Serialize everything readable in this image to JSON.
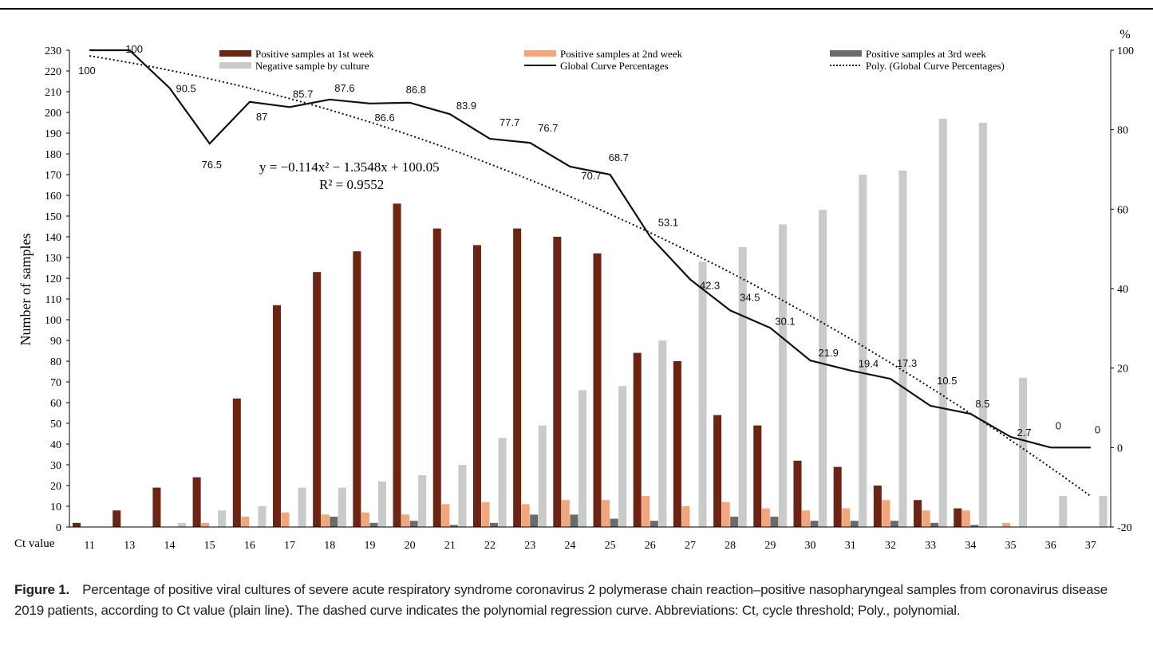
{
  "figure": {
    "label": "Figure 1.",
    "caption": "Percentage of positive viral cultures of severe acute respiratory syndrome coronavirus 2 polymerase chain reaction–positive nasopharyngeal samples from coronavirus disease 2019 patients, according to Ct value (plain line). The dashed curve indicates the polynomial regression curve. Abbreviations: Ct, cycle threshold; Poly., polynomial."
  },
  "colors": {
    "week1": "#6e2413",
    "week2": "#f2a679",
    "week3": "#6b6b6b",
    "negative": "#c9cbca",
    "line": "#111111"
  },
  "chart_data": {
    "type": "bar",
    "xlabel": "Ct value",
    "ylabel": "Number of samples",
    "y2label": "%",
    "ylim": [
      0,
      230
    ],
    "y2lim": [
      -20,
      100
    ],
    "yticks": [
      0,
      10,
      20,
      30,
      40,
      50,
      60,
      70,
      80,
      90,
      100,
      110,
      120,
      130,
      140,
      150,
      160,
      170,
      180,
      190,
      200,
      210,
      220,
      230
    ],
    "y2ticks": [
      -20,
      0,
      20,
      40,
      60,
      80,
      100
    ],
    "categories": [
      "11",
      "13",
      "14",
      "15",
      "16",
      "17",
      "18",
      "19",
      "20",
      "21",
      "22",
      "23",
      "24",
      "25",
      "26",
      "27",
      "28",
      "29",
      "30",
      "31",
      "32",
      "33",
      "34",
      "35",
      "36",
      "37"
    ],
    "series": [
      {
        "name": "Positive samples at 1st week",
        "key": "week1",
        "values": [
          2,
          8,
          19,
          24,
          62,
          107,
          123,
          133,
          156,
          144,
          136,
          144,
          140,
          132,
          84,
          80,
          54,
          49,
          32,
          29,
          20,
          13,
          9,
          0,
          0,
          0
        ]
      },
      {
        "name": "Positive samples at 2nd week",
        "key": "week2",
        "values": [
          0,
          0,
          0,
          2,
          5,
          7,
          6,
          7,
          6,
          11,
          12,
          11,
          13,
          13,
          15,
          10,
          12,
          9,
          8,
          9,
          13,
          8,
          8,
          2,
          0,
          0
        ]
      },
      {
        "name": "Positive samples at 3rd week",
        "key": "week3",
        "values": [
          0,
          0,
          0,
          0,
          0,
          0,
          5,
          2,
          3,
          1,
          2,
          6,
          6,
          4,
          3,
          0,
          5,
          5,
          3,
          3,
          3,
          2,
          1,
          0,
          0,
          0
        ]
      },
      {
        "name": "Negative sample by culture",
        "key": "negative",
        "values": [
          0,
          0,
          2,
          8,
          10,
          19,
          19,
          22,
          25,
          30,
          43,
          49,
          66,
          68,
          90,
          128,
          135,
          146,
          153,
          170,
          172,
          197,
          195,
          72,
          15,
          15
        ]
      }
    ],
    "line": {
      "name": "Global Curve Percentages",
      "values": [
        100,
        100,
        90.5,
        76.5,
        87,
        85.7,
        87.6,
        86.6,
        86.8,
        83.9,
        77.7,
        76.7,
        70.7,
        68.7,
        53.1,
        42.3,
        34.5,
        30.1,
        21.9,
        19.4,
        17.3,
        10.5,
        8.5,
        2.7,
        0,
        0
      ],
      "labels": [
        "100",
        "100",
        "90.5",
        "76.5",
        "87",
        "85.7",
        "87.6",
        "86.6",
        "86.8",
        "83.9",
        "77.7",
        "76.7",
        "70.7",
        "68.7",
        "53.1",
        "42.3",
        "34.5",
        "30.1",
        "21.9",
        "19.4",
        "17.3",
        "10.5",
        "8.5",
        "2.7",
        "0",
        "0"
      ]
    },
    "trend": {
      "name": "Poly. (Global Curve Percentages)",
      "a": -0.114,
      "b": -1.3548,
      "c": 100.05,
      "equation": "y = −0.114x² − 1.3548x + 100.05",
      "r2": "R² = 0.9552"
    },
    "legend": [
      {
        "label": "Positive samples at 1st week",
        "key": "week1",
        "kind": "bar"
      },
      {
        "label": "Positive samples at 2nd week",
        "key": "week2",
        "kind": "bar"
      },
      {
        "label": "Positive samples at 3rd week",
        "key": "week3",
        "kind": "bar"
      },
      {
        "label": "Negative sample by culture",
        "key": "negative",
        "kind": "bar"
      },
      {
        "label": "Global Curve Percentages",
        "key": "line",
        "kind": "line"
      },
      {
        "label": "Poly. (Global Curve Percentages)",
        "key": "line",
        "kind": "dotted"
      }
    ]
  }
}
